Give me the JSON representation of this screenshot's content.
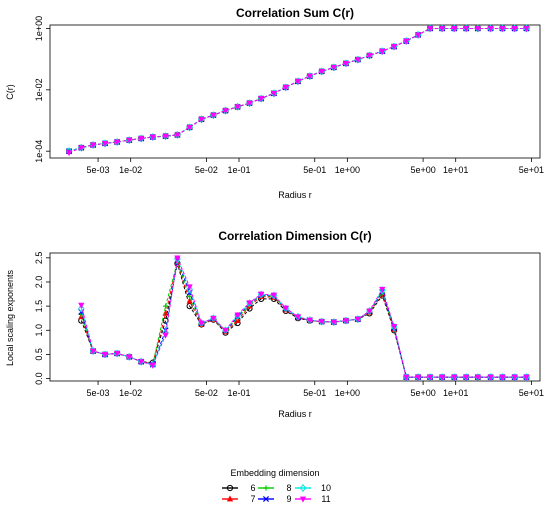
{
  "chart_data": [
    {
      "type": "line",
      "title": "Correlation Sum C(r)",
      "xlabel": "Radius r",
      "ylabel": "C(r)",
      "xscale": "log",
      "yscale": "log",
      "xlim": [
        0.0018,
        60
      ],
      "ylim": [
        6e-05,
        1.3
      ],
      "xticks": [
        {
          "value": 0.005,
          "label": "5e-03"
        },
        {
          "value": 0.01,
          "label": "1e-02"
        },
        {
          "value": 0.05,
          "label": "5e-02"
        },
        {
          "value": 0.1,
          "label": "1e-01"
        },
        {
          "value": 0.5,
          "label": "5e-01"
        },
        {
          "value": 1,
          "label": "1e+00"
        },
        {
          "value": 5,
          "label": "5e+00"
        },
        {
          "value": 10,
          "label": "1e+01"
        },
        {
          "value": 50,
          "label": "5e+01"
        }
      ],
      "yticks": [
        {
          "value": 0.0001,
          "label": "1e-04"
        },
        {
          "value": 0.01,
          "label": "1e-02"
        },
        {
          "value": 1,
          "label": "1e+00"
        }
      ],
      "x": [
        0.0027,
        0.0035,
        0.0045,
        0.0058,
        0.0075,
        0.0097,
        0.0125,
        0.016,
        0.021,
        0.027,
        0.035,
        0.045,
        0.058,
        0.075,
        0.097,
        0.125,
        0.16,
        0.21,
        0.27,
        0.35,
        0.45,
        0.58,
        0.75,
        0.97,
        1.25,
        1.6,
        2.1,
        2.7,
        3.5,
        4.5,
        5.8,
        7.5,
        9.7,
        12.5,
        16,
        21,
        27,
        35,
        45
      ],
      "series": [
        {
          "name": "6",
          "color": "#000000",
          "marker": "circle",
          "values": [
            0.0001,
            0.00013,
            0.00016,
            0.00018,
            0.0002,
            0.00023,
            0.00026,
            0.00029,
            0.00031,
            0.00034,
            0.0006,
            0.0011,
            0.0015,
            0.0021,
            0.0028,
            0.0037,
            0.0052,
            0.0077,
            0.0121,
            0.019,
            0.028,
            0.04,
            0.054,
            0.073,
            0.097,
            0.132,
            0.182,
            0.258,
            0.39,
            0.62,
            1,
            1,
            1,
            1,
            1,
            1,
            1,
            1,
            1
          ]
        },
        {
          "name": "7",
          "color": "#ff0000",
          "marker": "triangle",
          "values": [
            0.0001,
            0.00013,
            0.00016,
            0.00018,
            0.0002,
            0.00023,
            0.00026,
            0.00029,
            0.00031,
            0.00034,
            0.0006,
            0.0011,
            0.0015,
            0.0021,
            0.0028,
            0.0037,
            0.0052,
            0.0077,
            0.0121,
            0.019,
            0.028,
            0.04,
            0.054,
            0.073,
            0.097,
            0.132,
            0.182,
            0.258,
            0.39,
            0.62,
            1,
            1,
            1,
            1,
            1,
            1,
            1,
            1,
            1
          ]
        },
        {
          "name": "8",
          "color": "#00cc00",
          "marker": "plus",
          "values": [
            0.0001,
            0.00013,
            0.00016,
            0.00018,
            0.0002,
            0.00023,
            0.00026,
            0.00029,
            0.00031,
            0.00034,
            0.0006,
            0.0011,
            0.0015,
            0.0021,
            0.0028,
            0.0037,
            0.0052,
            0.0077,
            0.0121,
            0.019,
            0.028,
            0.04,
            0.054,
            0.073,
            0.097,
            0.132,
            0.182,
            0.258,
            0.39,
            0.62,
            1,
            1,
            1,
            1,
            1,
            1,
            1,
            1,
            1
          ]
        },
        {
          "name": "9",
          "color": "#0000ff",
          "marker": "cross",
          "values": [
            0.0001,
            0.00013,
            0.00016,
            0.00018,
            0.0002,
            0.00023,
            0.00026,
            0.00029,
            0.00031,
            0.00034,
            0.0006,
            0.0011,
            0.0015,
            0.0021,
            0.0028,
            0.0037,
            0.0052,
            0.0077,
            0.0121,
            0.019,
            0.028,
            0.04,
            0.054,
            0.073,
            0.097,
            0.132,
            0.182,
            0.258,
            0.39,
            0.62,
            1,
            1,
            1,
            1,
            1,
            1,
            1,
            1,
            1
          ]
        },
        {
          "name": "10",
          "color": "#00e5e5",
          "marker": "diamond",
          "values": [
            0.0001,
            0.00013,
            0.00016,
            0.00018,
            0.0002,
            0.00023,
            0.00026,
            0.00029,
            0.00031,
            0.00034,
            0.0006,
            0.0011,
            0.0015,
            0.0021,
            0.0028,
            0.0037,
            0.0052,
            0.0077,
            0.0121,
            0.019,
            0.028,
            0.04,
            0.054,
            0.073,
            0.097,
            0.132,
            0.182,
            0.258,
            0.39,
            0.62,
            1,
            1,
            1,
            1,
            1,
            1,
            1,
            1,
            1
          ]
        },
        {
          "name": "11",
          "color": "#ff00ff",
          "marker": "triangle-down",
          "values": [
            9e-05,
            0.00013,
            0.00016,
            0.00018,
            0.0002,
            0.00023,
            0.00026,
            0.00029,
            0.00031,
            0.00034,
            0.0006,
            0.0011,
            0.0015,
            0.0021,
            0.0028,
            0.0037,
            0.0052,
            0.0077,
            0.0121,
            0.019,
            0.028,
            0.04,
            0.054,
            0.073,
            0.097,
            0.132,
            0.182,
            0.258,
            0.39,
            0.62,
            1,
            1,
            1,
            1,
            1,
            1,
            1,
            1,
            1
          ]
        }
      ]
    },
    {
      "type": "line",
      "title": "Correlation Dimension C(r)",
      "xlabel": "Radius r",
      "ylabel": "Local scaling exponents",
      "xscale": "log",
      "xlim": [
        0.0018,
        60
      ],
      "ylim": [
        -0.05,
        2.6
      ],
      "xticks": [
        {
          "value": 0.005,
          "label": "5e-03"
        },
        {
          "value": 0.01,
          "label": "1e-02"
        },
        {
          "value": 0.05,
          "label": "5e-02"
        },
        {
          "value": 0.1,
          "label": "1e-01"
        },
        {
          "value": 0.5,
          "label": "5e-01"
        },
        {
          "value": 1,
          "label": "1e+00"
        },
        {
          "value": 5,
          "label": "5e+00"
        },
        {
          "value": 10,
          "label": "1e+01"
        },
        {
          "value": 50,
          "label": "5e+01"
        }
      ],
      "yticks": [
        {
          "value": 0,
          "label": "0.0"
        },
        {
          "value": 0.5,
          "label": "0.5"
        },
        {
          "value": 1,
          "label": "1.0"
        },
        {
          "value": 1.5,
          "label": "1.5"
        },
        {
          "value": 2,
          "label": "2.0"
        },
        {
          "value": 2.5,
          "label": "2.5"
        }
      ],
      "x": [
        0.0035,
        0.0045,
        0.0058,
        0.0075,
        0.0097,
        0.0125,
        0.016,
        0.021,
        0.027,
        0.035,
        0.045,
        0.058,
        0.075,
        0.097,
        0.125,
        0.16,
        0.21,
        0.27,
        0.35,
        0.45,
        0.58,
        0.75,
        0.97,
        1.25,
        1.6,
        2.1,
        2.7,
        3.5,
        4.5,
        5.8,
        7.5,
        9.7,
        12.5,
        16,
        21,
        27,
        35,
        45
      ],
      "series": [
        {
          "name": "6",
          "color": "#000000",
          "marker": "circle",
          "values": [
            1.2,
            0.57,
            0.5,
            0.52,
            0.45,
            0.35,
            0.33,
            1.2,
            2.38,
            1.5,
            1.12,
            1.22,
            0.95,
            1.15,
            1.45,
            1.65,
            1.65,
            1.4,
            1.25,
            1.2,
            1.18,
            1.17,
            1.2,
            1.23,
            1.35,
            1.72,
            1.0,
            0.03,
            0.03,
            0.03,
            0.03,
            0.03,
            0.03,
            0.03,
            0.03,
            0.03,
            0.03,
            0.03
          ]
        },
        {
          "name": "7",
          "color": "#ff0000",
          "marker": "triangle",
          "values": [
            1.28,
            0.57,
            0.5,
            0.52,
            0.45,
            0.35,
            0.31,
            1.35,
            2.4,
            1.6,
            1.12,
            1.22,
            0.97,
            1.2,
            1.5,
            1.7,
            1.68,
            1.42,
            1.26,
            1.2,
            1.18,
            1.17,
            1.2,
            1.23,
            1.37,
            1.75,
            1.02,
            0.03,
            0.03,
            0.03,
            0.03,
            0.03,
            0.03,
            0.03,
            0.03,
            0.03,
            0.03,
            0.03
          ]
        },
        {
          "name": "8",
          "color": "#00cc00",
          "marker": "plus",
          "values": [
            1.33,
            0.57,
            0.5,
            0.52,
            0.45,
            0.35,
            0.3,
            1.5,
            2.42,
            1.7,
            1.13,
            1.23,
            0.98,
            1.25,
            1.53,
            1.72,
            1.7,
            1.43,
            1.27,
            1.21,
            1.18,
            1.17,
            1.2,
            1.23,
            1.38,
            1.78,
            1.04,
            0.03,
            0.03,
            0.03,
            0.03,
            0.03,
            0.03,
            0.03,
            0.03,
            0.03,
            0.03,
            0.03
          ]
        },
        {
          "name": "9",
          "color": "#0000ff",
          "marker": "cross",
          "values": [
            1.38,
            0.57,
            0.5,
            0.52,
            0.45,
            0.35,
            0.29,
            1.0,
            2.45,
            1.78,
            1.14,
            1.24,
            0.99,
            1.28,
            1.55,
            1.73,
            1.71,
            1.44,
            1.27,
            1.21,
            1.18,
            1.17,
            1.2,
            1.23,
            1.39,
            1.8,
            1.05,
            0.03,
            0.03,
            0.03,
            0.03,
            0.03,
            0.03,
            0.03,
            0.03,
            0.03,
            0.03,
            0.03
          ]
        },
        {
          "name": "10",
          "color": "#00e5e5",
          "marker": "diamond",
          "values": [
            1.45,
            0.57,
            0.5,
            0.52,
            0.45,
            0.35,
            0.29,
            0.95,
            2.47,
            1.85,
            1.15,
            1.25,
            1.0,
            1.3,
            1.56,
            1.74,
            1.72,
            1.45,
            1.28,
            1.21,
            1.18,
            1.17,
            1.2,
            1.23,
            1.4,
            1.83,
            1.07,
            0.03,
            0.03,
            0.03,
            0.03,
            0.03,
            0.03,
            0.03,
            0.03,
            0.03,
            0.03,
            0.03
          ]
        },
        {
          "name": "11",
          "color": "#ff00ff",
          "marker": "triangle-down",
          "values": [
            1.52,
            0.57,
            0.5,
            0.52,
            0.45,
            0.35,
            0.28,
            0.9,
            2.5,
            1.9,
            1.15,
            1.25,
            1.0,
            1.32,
            1.57,
            1.75,
            1.73,
            1.46,
            1.28,
            1.21,
            1.18,
            1.17,
            1.2,
            1.23,
            1.4,
            1.85,
            1.08,
            0.03,
            0.03,
            0.03,
            0.03,
            0.03,
            0.03,
            0.03,
            0.03,
            0.03,
            0.03,
            0.03
          ]
        }
      ]
    }
  ],
  "legend": {
    "title": "Embedding dimension",
    "placement": "bottom-center",
    "items": [
      {
        "label": "6",
        "color": "#000000",
        "marker": "circle"
      },
      {
        "label": "7",
        "color": "#ff0000",
        "marker": "triangle"
      },
      {
        "label": "8",
        "color": "#00cc00",
        "marker": "plus"
      },
      {
        "label": "9",
        "color": "#0000ff",
        "marker": "cross"
      },
      {
        "label": "10",
        "color": "#00e5e5",
        "marker": "diamond"
      },
      {
        "label": "11",
        "color": "#ff00ff",
        "marker": "triangle-down"
      }
    ]
  }
}
